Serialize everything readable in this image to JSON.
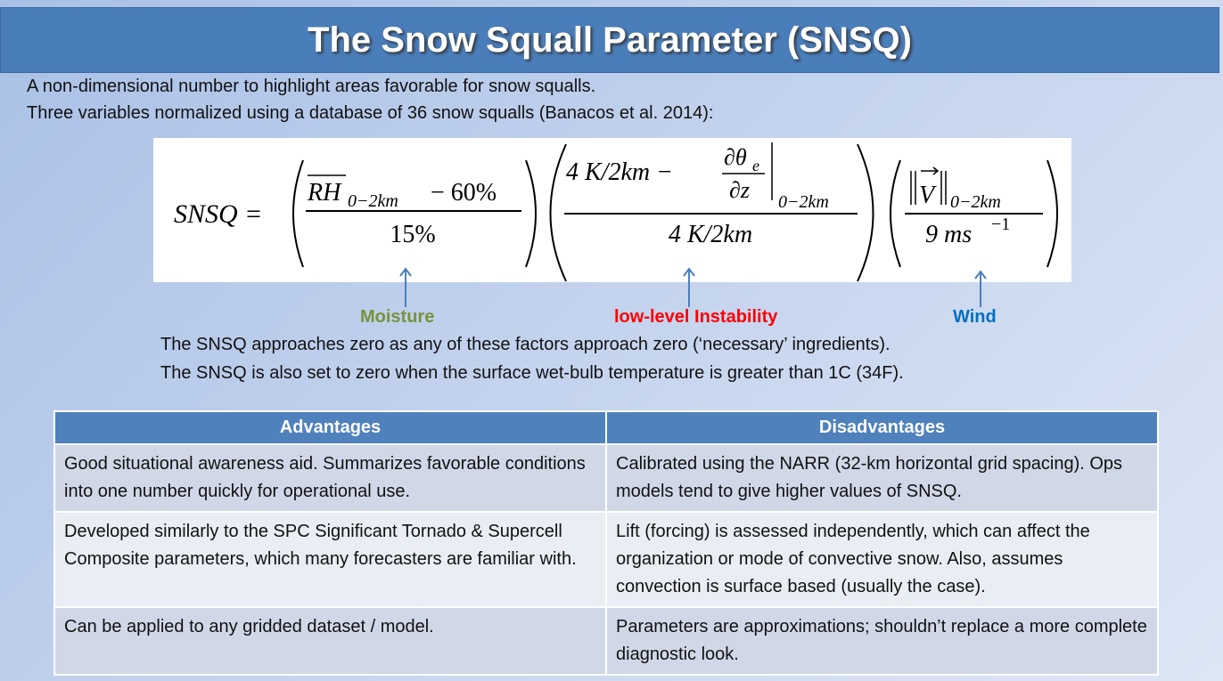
{
  "header": {
    "title": "The Snow Squall Parameter (SNSQ)"
  },
  "intro": [
    "A non-dimensional number to highlight areas favorable for snow squalls.",
    "Three variables normalized using a database of 36 snow squalls (Banacos et al. 2014):"
  ],
  "equation": {
    "lhs": "SNSQ =",
    "moisture": {
      "symbol": "RH",
      "subscript": "0−2km",
      "rest": "− 60%",
      "denominator": "15%"
    },
    "instability": {
      "lead": "4 K/2km −",
      "derivative_top": "∂θ",
      "derivative_top_subscript": "e",
      "derivative_bottom": "∂z",
      "subscript": "0−2km",
      "denominator": "4 K/2km"
    },
    "wind": {
      "symbol": "V",
      "subscript": "0−2km",
      "denominator": "9 ms",
      "denominator_superscript": "−1"
    }
  },
  "labels": {
    "moisture": "Moisture",
    "instability": "low-level Instability",
    "wind": "Wind"
  },
  "notes": [
    "The SNSQ approaches zero as any of these factors approach zero (‘necessary’ ingredients).",
    "The SNSQ is also set to zero when the surface wet-bulb temperature is greater than 1C (34F)."
  ],
  "table": {
    "headers": [
      "Advantages",
      "Disadvantages"
    ],
    "rows": [
      [
        "Good situational awareness aid. Summarizes favorable conditions into one number quickly for operational use.",
        "Calibrated using the NARR (32-km horizontal grid spacing). Ops models tend to give higher values of SNSQ."
      ],
      [
        "Developed similarly to the SPC Significant Tornado & Supercell Composite parameters, which many forecasters are familiar with.",
        "Lift (forcing) is assessed independently, which can affect the organization or mode of convective snow. Also, assumes convection is surface based (usually the case)."
      ],
      [
        "Can be applied to any gridded dataset / model.",
        "Parameters are approximations; shouldn’t replace a more complete diagnostic look."
      ]
    ]
  }
}
